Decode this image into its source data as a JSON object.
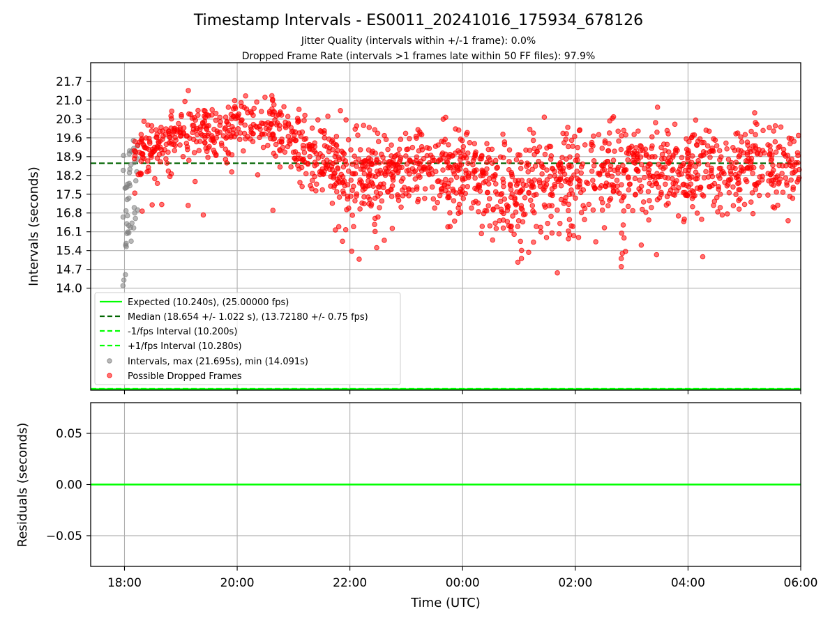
{
  "chart_data": {
    "type": "scatter",
    "title": "Timestamp Intervals - ES0011_20241016_175934_678126",
    "subtitles": [
      "Jitter Quality (intervals within +/-1 frame): 0.0%",
      "Dropped Frame Rate (intervals >1 frames late within 50 FF files): 97.9%"
    ],
    "xlabel": "Time (UTC)",
    "x_ticks": [
      "18:00",
      "20:00",
      "22:00",
      "00:00",
      "02:00",
      "04:00",
      "06:00"
    ],
    "x_range": [
      "17:24",
      "06:00"
    ],
    "top_panel": {
      "ylabel": "Intervals (seconds)",
      "y_ticks": [
        "14.0",
        "14.7",
        "15.4",
        "16.1",
        "16.8",
        "17.5",
        "18.2",
        "18.9",
        "19.6",
        "20.3",
        "21.0",
        "21.7"
      ],
      "ylim": [
        10.2,
        22.4
      ],
      "grid": true,
      "legend_position": "lower-left",
      "legend": [
        "Expected (10.240s), (25.00000 fps)",
        "Median (18.654 +/- 1.022 s), (13.72180 +/- 0.75 fps)",
        "-1/fps Interval (10.200s)",
        "+1/fps Interval (10.280s)",
        "Intervals, max (21.695s), min (14.091s)",
        "Possible Dropped Frames"
      ],
      "lines": {
        "expected": 10.24,
        "median": 18.654,
        "minus_one_fps": 10.2,
        "plus_one_fps": 10.28
      },
      "series": {
        "gray_points_seconds": [
          14.091,
          14.3,
          14.5,
          15.6,
          16.4,
          17.3,
          17.9,
          18.3,
          18.6,
          19.1,
          19.5,
          17.0,
          16.8,
          18.0,
          18.8,
          19.3
        ],
        "red_profile": [
          {
            "t": "18:05",
            "mean": 18.5,
            "spread": 0.6
          },
          {
            "t": "18:30",
            "mean": 19.3,
            "spread": 0.5
          },
          {
            "t": "19:00",
            "mean": 19.9,
            "spread": 0.5
          },
          {
            "t": "19:30",
            "mean": 19.7,
            "spread": 0.5
          },
          {
            "t": "20:00",
            "mean": 20.2,
            "spread": 0.5
          },
          {
            "t": "20:30",
            "mean": 20.1,
            "spread": 0.5
          },
          {
            "t": "21:00",
            "mean": 19.5,
            "spread": 0.6
          },
          {
            "t": "21:30",
            "mean": 18.7,
            "spread": 0.8
          },
          {
            "t": "22:00",
            "mean": 18.4,
            "spread": 0.8
          },
          {
            "t": "23:00",
            "mean": 18.4,
            "spread": 0.8
          },
          {
            "t": "00:00",
            "mean": 18.5,
            "spread": 0.8
          },
          {
            "t": "00:45",
            "mean": 17.6,
            "spread": 0.9
          },
          {
            "t": "01:45",
            "mean": 18.1,
            "spread": 0.9
          },
          {
            "t": "02:30",
            "mean": 18.5,
            "spread": 0.8
          },
          {
            "t": "04:00",
            "mean": 18.5,
            "spread": 0.8
          },
          {
            "t": "06:00",
            "mean": 18.6,
            "spread": 0.7
          }
        ],
        "red_count": 1700
      },
      "intervals_max": 21.695,
      "intervals_min": 14.091
    },
    "bottom_panel": {
      "ylabel": "Residuals (seconds)",
      "y_ticks": [
        "0.05",
        "0.00",
        "−0.05"
      ],
      "ylim": [
        -0.08,
        0.08
      ],
      "grid": true,
      "residual_line": 0.0
    },
    "colors": {
      "expected": "#00ff00",
      "median": "#006400",
      "fps_bounds": "#00ff00",
      "gray_points": "#808080",
      "red_points": "#ff0000",
      "grid": "#b0b0b0"
    }
  }
}
